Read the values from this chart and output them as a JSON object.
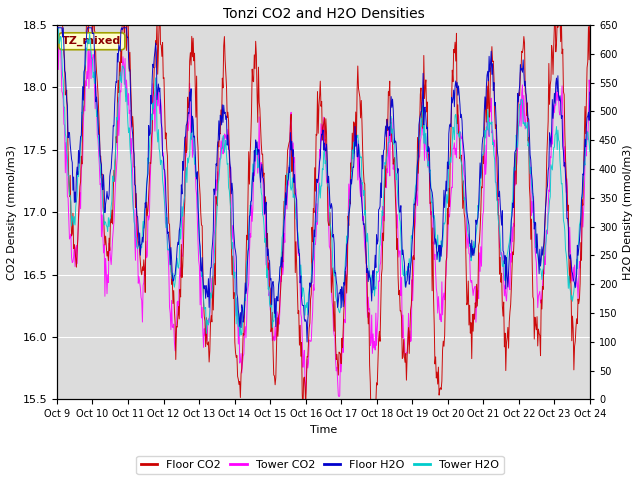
{
  "title": "Tonzi CO2 and H2O Densities",
  "xlabel": "Time",
  "ylabel_left": "CO2 Density (mmol/m3)",
  "ylabel_right": "H2O Density (mmol/m3)",
  "ylim_left": [
    15.5,
    18.5
  ],
  "ylim_right": [
    0,
    650
  ],
  "yticks_left": [
    15.5,
    16.0,
    16.5,
    17.0,
    17.5,
    18.0,
    18.5
  ],
  "yticks_right": [
    0,
    50,
    100,
    150,
    200,
    250,
    300,
    350,
    400,
    450,
    500,
    550,
    600,
    650
  ],
  "xtick_labels": [
    "Oct 9",
    "Oct 10",
    "Oct 11",
    "Oct 12",
    "Oct 13",
    "Oct 14",
    "Oct 15",
    "Oct 16",
    "Oct 17",
    "Oct 18",
    "Oct 19",
    "Oct 20",
    "Oct 21",
    "Oct 22",
    "Oct 23",
    "Oct 24"
  ],
  "annotation_text": "TZ_mixed",
  "annotation_color": "#8B0000",
  "annotation_bg": "#FFFFCC",
  "annotation_border": "#A0A000",
  "colors": {
    "floor_co2": "#CC0000",
    "tower_co2": "#FF00FF",
    "floor_h2o": "#0000CC",
    "tower_h2o": "#00CCCC"
  },
  "legend_labels": [
    "Floor CO2",
    "Tower CO2",
    "Floor H2O",
    "Tower H2O"
  ],
  "plot_bg": "#DCDCDC",
  "n_days": 16,
  "points_per_day": 48,
  "seed": 42
}
